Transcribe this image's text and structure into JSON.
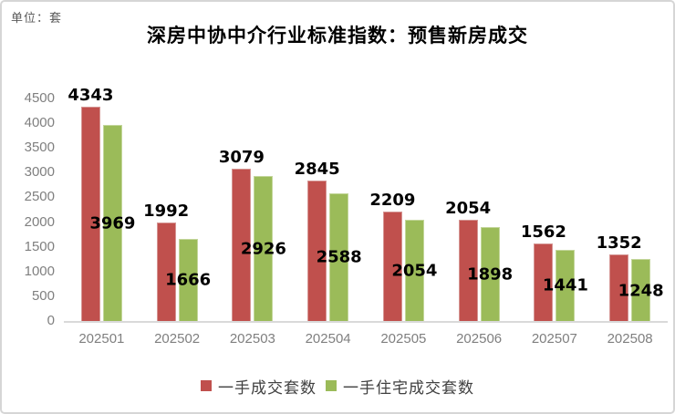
{
  "chart_data": {
    "type": "bar",
    "title": "深房中协中介行业标准指数：预售新房成交",
    "unit_label": "单位：套",
    "categories": [
      "202501",
      "202502",
      "202503",
      "202504",
      "202505",
      "202506",
      "202507",
      "202508"
    ],
    "series": [
      {
        "name": "一手成交套数",
        "color": "#c0504d",
        "border_color": "#d59593",
        "label_position": "outside-end",
        "values": [
          4343,
          1992,
          3079,
          2845,
          2209,
          2054,
          1562,
          1352
        ]
      },
      {
        "name": "一手住宅成交套数",
        "color": "#9bbb59",
        "border_color": "#c3d69b",
        "label_position": "center",
        "values": [
          3969,
          1666,
          2926,
          2588,
          2054,
          1898,
          1441,
          1248
        ]
      }
    ],
    "ylim": [
      0,
      4500
    ],
    "y_ticks": [
      0,
      500,
      1000,
      1500,
      2000,
      2500,
      3000,
      3500,
      4000,
      4500
    ],
    "grid": false,
    "legend_position": "bottom",
    "colors": {
      "axis_line": "#d9d9d9",
      "tick_text": "#7f7f7f",
      "data_label": "#000000",
      "title_text": "#000000",
      "legend_text": "#404040",
      "frame_border": "#d6d6d6",
      "background": "#ffffff"
    }
  }
}
